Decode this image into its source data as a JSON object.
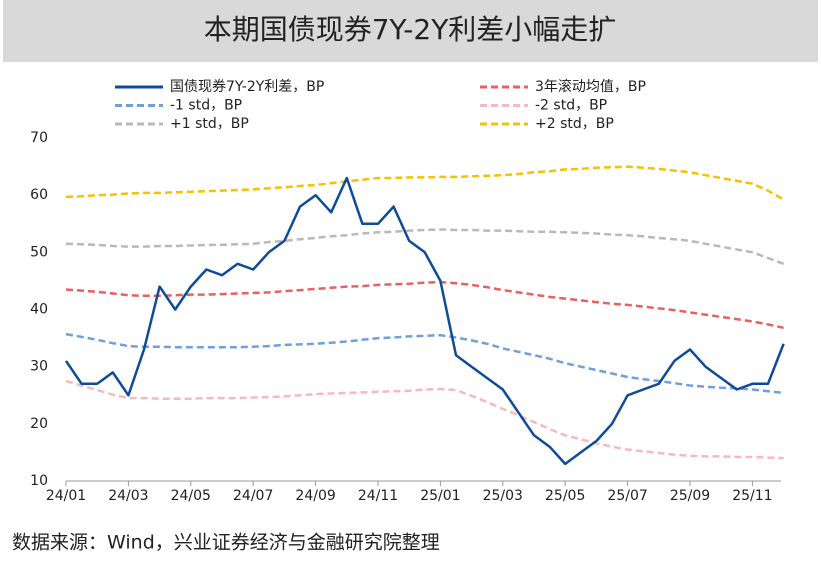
{
  "chart_data": {
    "type": "line",
    "title": "本期国债现券7Y-2Y利差小幅走扩",
    "source": "数据来源：Wind，兴业证券经济与金融研究院整理",
    "categories": [
      "24/01",
      null,
      null,
      null,
      "24/03",
      null,
      null,
      null,
      "24/05",
      null,
      null,
      null,
      "24/07",
      null,
      null,
      null,
      "24/09",
      null,
      null,
      null,
      "24/11",
      null,
      null,
      null,
      "25/01",
      null,
      null,
      null,
      "25/03",
      null,
      null,
      null,
      "25/05",
      null,
      null,
      null,
      "25/07",
      null,
      null,
      null,
      "25/09",
      null,
      null,
      null,
      "25/11",
      null,
      null
    ],
    "ylim": [
      10,
      70
    ],
    "yticks": [
      10,
      20,
      30,
      40,
      50,
      60,
      70
    ],
    "series": [
      {
        "name": "国债现券7Y-2Y利差，BP",
        "color": "#0f4c97",
        "dash": false,
        "values": [
          31,
          27,
          27,
          29,
          25,
          33,
          44,
          40,
          44,
          47,
          46,
          48,
          47,
          50,
          52,
          58,
          60,
          57,
          63,
          55,
          55,
          58,
          52,
          50,
          45,
          32,
          30,
          28,
          26,
          22,
          18,
          16,
          13,
          15,
          17,
          20,
          25,
          26,
          27,
          31,
          33,
          30,
          28,
          26,
          27,
          27,
          34
        ]
      },
      {
        "name": "3年滚动均值，BP",
        "color": "#e8605f",
        "dash": true,
        "values": [
          43.5,
          43.3,
          43.1,
          42.8,
          42.5,
          42.4,
          42.4,
          42.5,
          42.6,
          42.6,
          42.7,
          42.8,
          42.9,
          43,
          43.2,
          43.4,
          43.6,
          43.8,
          44,
          44.1,
          44.3,
          44.4,
          44.5,
          44.7,
          44.8,
          44.6,
          44.3,
          43.9,
          43.4,
          43,
          42.6,
          42.2,
          41.9,
          41.6,
          41.3,
          41,
          40.8,
          40.5,
          40.2,
          39.9,
          39.5,
          39.1,
          38.7,
          38.3,
          37.9,
          37.4,
          36.8
        ]
      },
      {
        "name": "-1 std，BP",
        "color": "#6fa0dc",
        "dash": true,
        "values": [
          35.7,
          35.2,
          34.7,
          34.1,
          33.6,
          33.5,
          33.5,
          33.4,
          33.4,
          33.4,
          33.4,
          33.4,
          33.5,
          33.6,
          33.8,
          33.9,
          34,
          34.2,
          34.4,
          34.7,
          35,
          35.1,
          35.3,
          35.4,
          35.5,
          35.1,
          34.6,
          34,
          33.2,
          32.6,
          32,
          31.4,
          30.6,
          30,
          29.4,
          28.8,
          28.2,
          27.8,
          27.5,
          27.1,
          26.7,
          26.5,
          26.3,
          26.2,
          26,
          25.7,
          25.4
        ]
      },
      {
        "name": "-2 std，BP",
        "color": "#f6b8c4",
        "dash": true,
        "values": [
          27.5,
          26.7,
          25.9,
          25.1,
          24.5,
          24.5,
          24.4,
          24.4,
          24.4,
          24.5,
          24.5,
          24.5,
          24.6,
          24.7,
          24.8,
          25,
          25.2,
          25.3,
          25.4,
          25.5,
          25.6,
          25.7,
          25.8,
          26,
          26.1,
          25.9,
          24.9,
          23.8,
          22.6,
          21.5,
          20.3,
          19.1,
          18,
          17.3,
          16.6,
          16,
          15.5,
          15.2,
          14.9,
          14.6,
          14.4,
          14.3,
          14.3,
          14.2,
          14.2,
          14.1,
          14
        ]
      },
      {
        "name": "+1 std，BP",
        "color": "#b9b9b9",
        "dash": true,
        "values": [
          51.5,
          51.4,
          51.3,
          51.1,
          51,
          51,
          51.1,
          51.1,
          51.2,
          51.3,
          51.3,
          51.4,
          51.5,
          51.8,
          52,
          52.3,
          52.5,
          52.8,
          53,
          53.3,
          53.5,
          53.6,
          53.8,
          53.9,
          54,
          53.9,
          53.9,
          53.8,
          53.8,
          53.7,
          53.6,
          53.6,
          53.5,
          53.4,
          53.3,
          53.1,
          53,
          52.8,
          52.5,
          52.3,
          52,
          51.5,
          51,
          50.5,
          50,
          49,
          48
        ]
      },
      {
        "name": "+2 std，BP",
        "color": "#f5c100",
        "dash": true,
        "values": [
          59.7,
          59.8,
          60,
          60.1,
          60.3,
          60.4,
          60.4,
          60.5,
          60.6,
          60.7,
          60.8,
          60.9,
          61,
          61.2,
          61.4,
          61.6,
          61.8,
          62.1,
          62.4,
          62.7,
          63,
          63,
          63.1,
          63.1,
          63.2,
          63.2,
          63.3,
          63.4,
          63.5,
          63.7,
          64,
          64.2,
          64.5,
          64.6,
          64.8,
          64.9,
          65,
          64.8,
          64.6,
          64.3,
          64,
          63.5,
          63,
          62.5,
          62,
          60.8,
          59.2
        ]
      }
    ]
  }
}
